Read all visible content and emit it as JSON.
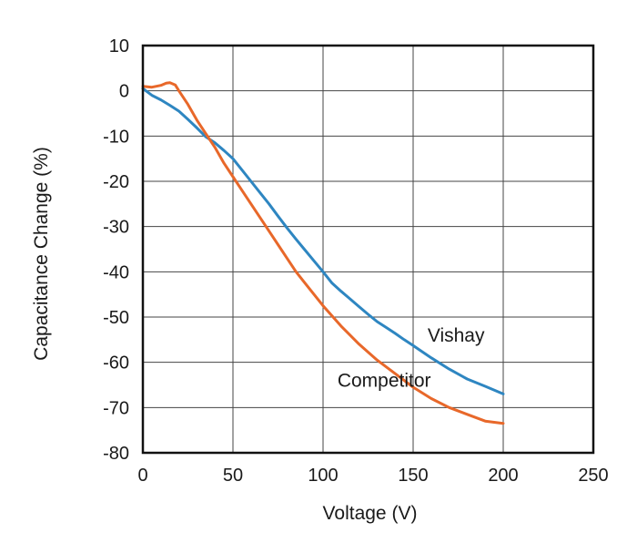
{
  "chart_data": {
    "type": "line",
    "title": "",
    "xlabel": "Voltage (V)",
    "ylabel": "Capacitance Change (%)",
    "xlim": [
      0,
      250
    ],
    "ylim": [
      -80,
      10
    ],
    "xticks": [
      0,
      50,
      100,
      150,
      200,
      250
    ],
    "yticks": [
      10,
      0,
      -10,
      -20,
      -30,
      -40,
      -50,
      -60,
      -70,
      -80
    ],
    "grid": true,
    "legend": "inline labels",
    "series": [
      {
        "name": "Vishay",
        "color": "#2e86c1",
        "x": [
          0,
          5,
          10,
          15,
          20,
          25,
          30,
          35,
          40,
          45,
          50,
          55,
          60,
          65,
          70,
          75,
          80,
          85,
          90,
          95,
          100,
          105,
          110,
          115,
          120,
          125,
          130,
          135,
          140,
          145,
          150,
          160,
          170,
          180,
          190,
          200
        ],
        "y": [
          0.5,
          -1,
          -2,
          -3.2,
          -4.5,
          -6.3,
          -8.2,
          -10.2,
          -11.5,
          -13.2,
          -15,
          -17.5,
          -20,
          -22.5,
          -25,
          -27.7,
          -30.3,
          -32.8,
          -35.2,
          -37.6,
          -40,
          -42.5,
          -44.3,
          -46,
          -47.7,
          -49.4,
          -51,
          -52.3,
          -53.6,
          -55,
          -56.3,
          -59,
          -61.5,
          -63.7,
          -65.3,
          -67
        ]
      },
      {
        "name": "Competitor",
        "color": "#e8682a",
        "x": [
          0,
          5,
          10,
          13,
          15,
          18,
          20,
          25,
          30,
          35,
          40,
          45,
          50,
          55,
          60,
          65,
          70,
          75,
          80,
          85,
          90,
          95,
          100,
          110,
          120,
          130,
          140,
          150,
          160,
          170,
          180,
          190,
          200
        ],
        "y": [
          1,
          0.8,
          1.2,
          1.7,
          1.8,
          1.3,
          0,
          -3,
          -6.5,
          -9.5,
          -12.5,
          -16,
          -19,
          -22,
          -25,
          -28,
          -31,
          -34,
          -37,
          -40,
          -42.5,
          -45,
          -47.5,
          -52,
          -56,
          -59.5,
          -62.5,
          -65.5,
          -68,
          -70,
          -71.5,
          -73,
          -73.5
        ]
      }
    ],
    "annotations": [
      {
        "text": "Vishay",
        "x": 158,
        "y": -54
      },
      {
        "text": "Competitor",
        "x": 108,
        "y": -64
      }
    ]
  }
}
